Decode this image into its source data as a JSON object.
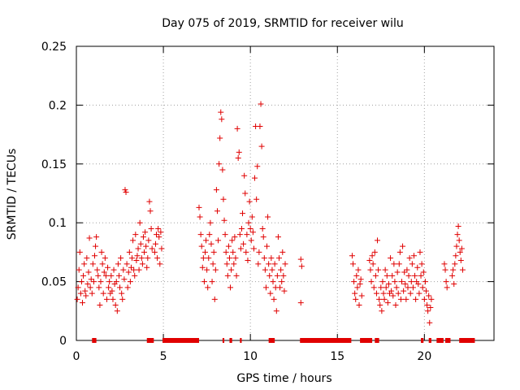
{
  "chart_data": {
    "type": "scatter",
    "title": "Day 075 of 2019, SRMTID for receiver wilu",
    "xlabel": "GPS time / hours",
    "ylabel": "SRMTID / TECUs",
    "xlim": [
      0,
      24
    ],
    "ylim": [
      0,
      0.25
    ],
    "x_ticks": [
      0,
      5,
      10,
      15,
      20
    ],
    "x_tick_labels": [
      "0",
      "5",
      "10",
      "15",
      "20"
    ],
    "y_ticks": [
      0,
      0.05,
      0.1,
      0.15,
      0.2,
      0.25
    ],
    "y_tick_labels": [
      "0",
      "0.05",
      "0.1",
      "0.15",
      "0.2",
      "0.25"
    ],
    "grid": true,
    "marker": "+",
    "color": "#e00000",
    "series": [
      {
        "name": "SRMTID",
        "points": [
          [
            0.05,
            0.035
          ],
          [
            0.1,
            0.045
          ],
          [
            0.15,
            0.06
          ],
          [
            0.2,
            0.075
          ],
          [
            0.25,
            0.04
          ],
          [
            0.3,
            0.05
          ],
          [
            0.35,
            0.032
          ],
          [
            0.4,
            0.055
          ],
          [
            0.45,
            0.065
          ],
          [
            0.5,
            0.042
          ],
          [
            0.55,
            0.038
          ],
          [
            0.6,
            0.07
          ],
          [
            0.65,
            0.048
          ],
          [
            0.7,
            0.058
          ],
          [
            0.75,
            0.087
          ],
          [
            0.8,
            0.045
          ],
          [
            0.85,
            0.052
          ],
          [
            0.9,
            0.04
          ],
          [
            0.95,
            0.065
          ],
          [
            1.0,
            0.05
          ],
          [
            1.05,
            0.072
          ],
          [
            1.1,
            0.08
          ],
          [
            1.15,
            0.088
          ],
          [
            1.2,
            0.06
          ],
          [
            1.25,
            0.055
          ],
          [
            1.3,
            0.045
          ],
          [
            1.35,
            0.03
          ],
          [
            1.4,
            0.05
          ],
          [
            1.45,
            0.075
          ],
          [
            1.5,
            0.065
          ],
          [
            1.55,
            0.04
          ],
          [
            1.6,
            0.058
          ],
          [
            1.65,
            0.07
          ],
          [
            1.7,
            0.055
          ],
          [
            1.75,
            0.035
          ],
          [
            1.8,
            0.062
          ],
          [
            1.85,
            0.045
          ],
          [
            1.9,
            0.05
          ],
          [
            1.95,
            0.04
          ],
          [
            2.0,
            0.055
          ],
          [
            2.05,
            0.042
          ],
          [
            2.1,
            0.035
          ],
          [
            2.15,
            0.06
          ],
          [
            2.2,
            0.048
          ],
          [
            2.25,
            0.03
          ],
          [
            2.3,
            0.05
          ],
          [
            2.35,
            0.025
          ],
          [
            2.4,
            0.065
          ],
          [
            2.45,
            0.055
          ],
          [
            2.5,
            0.045
          ],
          [
            2.55,
            0.07
          ],
          [
            2.6,
            0.04
          ],
          [
            2.65,
            0.035
          ],
          [
            2.7,
            0.06
          ],
          [
            2.75,
            0.052
          ],
          [
            2.8,
            0.128
          ],
          [
            2.85,
            0.126
          ],
          [
            2.9,
            0.065
          ],
          [
            2.95,
            0.045
          ],
          [
            3.0,
            0.058
          ],
          [
            3.05,
            0.075
          ],
          [
            3.1,
            0.05
          ],
          [
            3.15,
            0.062
          ],
          [
            3.2,
            0.07
          ],
          [
            3.25,
            0.085
          ],
          [
            3.3,
            0.06
          ],
          [
            3.35,
            0.055
          ],
          [
            3.4,
            0.09
          ],
          [
            3.45,
            0.068
          ],
          [
            3.5,
            0.072
          ],
          [
            3.55,
            0.078
          ],
          [
            3.6,
            0.06
          ],
          [
            3.65,
            0.1
          ],
          [
            3.7,
            0.082
          ],
          [
            3.75,
            0.07
          ],
          [
            3.8,
            0.065
          ],
          [
            3.85,
            0.088
          ],
          [
            3.9,
            0.075
          ],
          [
            3.95,
            0.092
          ],
          [
            4.0,
            0.08
          ],
          [
            4.05,
            0.062
          ],
          [
            4.1,
            0.07
          ],
          [
            4.15,
            0.085
          ],
          [
            4.2,
            0.118
          ],
          [
            4.25,
            0.11
          ],
          [
            4.3,
            0.095
          ],
          [
            4.35,
            0.078
          ],
          [
            4.5,
            0.075
          ],
          [
            4.55,
            0.082
          ],
          [
            4.6,
            0.09
          ],
          [
            4.65,
            0.07
          ],
          [
            4.7,
            0.095
          ],
          [
            4.75,
            0.088
          ],
          [
            4.8,
            0.065
          ],
          [
            4.85,
            0.092
          ],
          [
            4.9,
            0.078
          ],
          [
            7.05,
            0.113
          ],
          [
            7.1,
            0.105
          ],
          [
            7.15,
            0.09
          ],
          [
            7.2,
            0.08
          ],
          [
            7.25,
            0.062
          ],
          [
            7.3,
            0.07
          ],
          [
            7.35,
            0.05
          ],
          [
            7.4,
            0.075
          ],
          [
            7.45,
            0.085
          ],
          [
            7.5,
            0.06
          ],
          [
            7.55,
            0.045
          ],
          [
            7.6,
            0.07
          ],
          [
            7.65,
            0.09
          ],
          [
            7.7,
            0.1
          ],
          [
            7.75,
            0.082
          ],
          [
            7.8,
            0.05
          ],
          [
            7.85,
            0.065
          ],
          [
            7.9,
            0.075
          ],
          [
            7.95,
            0.035
          ],
          [
            8.0,
            0.06
          ],
          [
            8.05,
            0.128
          ],
          [
            8.1,
            0.11
          ],
          [
            8.15,
            0.085
          ],
          [
            8.2,
            0.15
          ],
          [
            8.25,
            0.172
          ],
          [
            8.3,
            0.194
          ],
          [
            8.35,
            0.188
          ],
          [
            8.4,
            0.145
          ],
          [
            8.45,
            0.12
          ],
          [
            8.5,
            0.102
          ],
          [
            8.55,
            0.09
          ],
          [
            8.6,
            0.075
          ],
          [
            8.65,
            0.065
          ],
          [
            8.7,
            0.055
          ],
          [
            8.75,
            0.08
          ],
          [
            8.8,
            0.07
          ],
          [
            8.85,
            0.045
          ],
          [
            8.9,
            0.06
          ],
          [
            8.95,
            0.085
          ],
          [
            9.0,
            0.075
          ],
          [
            9.05,
            0.065
          ],
          [
            9.1,
            0.088
          ],
          [
            9.15,
            0.07
          ],
          [
            9.2,
            0.055
          ],
          [
            9.25,
            0.18
          ],
          [
            9.3,
            0.155
          ],
          [
            9.35,
            0.16
          ],
          [
            9.4,
            0.09
          ],
          [
            9.45,
            0.078
          ],
          [
            9.5,
            0.095
          ],
          [
            9.55,
            0.108
          ],
          [
            9.6,
            0.082
          ],
          [
            9.65,
            0.14
          ],
          [
            9.7,
            0.125
          ],
          [
            9.75,
            0.075
          ],
          [
            9.8,
            0.09
          ],
          [
            9.85,
            0.068
          ],
          [
            9.9,
            0.1
          ],
          [
            9.95,
            0.118
          ],
          [
            10.0,
            0.095
          ],
          [
            10.05,
            0.085
          ],
          [
            10.1,
            0.105
          ],
          [
            10.15,
            0.092
          ],
          [
            10.2,
            0.078
          ],
          [
            10.25,
            0.138
          ],
          [
            10.3,
            0.182
          ],
          [
            10.35,
            0.12
          ],
          [
            10.4,
            0.148
          ],
          [
            10.45,
            0.065
          ],
          [
            10.5,
            0.075
          ],
          [
            10.55,
            0.182
          ],
          [
            10.6,
            0.201
          ],
          [
            10.65,
            0.165
          ],
          [
            10.7,
            0.095
          ],
          [
            10.75,
            0.088
          ],
          [
            10.8,
            0.07
          ],
          [
            10.85,
            0.06
          ],
          [
            10.9,
            0.045
          ],
          [
            10.95,
            0.08
          ],
          [
            11.0,
            0.105
          ],
          [
            11.05,
            0.065
          ],
          [
            11.1,
            0.055
          ],
          [
            11.15,
            0.04
          ],
          [
            11.2,
            0.07
          ],
          [
            11.25,
            0.06
          ],
          [
            11.3,
            0.05
          ],
          [
            11.35,
            0.035
          ],
          [
            11.4,
            0.065
          ],
          [
            11.45,
            0.045
          ],
          [
            11.5,
            0.025
          ],
          [
            11.55,
            0.055
          ],
          [
            11.6,
            0.088
          ],
          [
            11.65,
            0.07
          ],
          [
            11.7,
            0.045
          ],
          [
            11.75,
            0.06
          ],
          [
            11.8,
            0.05
          ],
          [
            11.85,
            0.075
          ],
          [
            11.9,
            0.055
          ],
          [
            11.95,
            0.042
          ],
          [
            12.0,
            0.065
          ],
          [
            12.9,
            0.069
          ],
          [
            12.95,
            0.063
          ],
          [
            12.9,
            0.032
          ],
          [
            15.85,
            0.072
          ],
          [
            15.9,
            0.065
          ],
          [
            15.95,
            0.05
          ],
          [
            16.0,
            0.04
          ],
          [
            16.05,
            0.035
          ],
          [
            16.1,
            0.055
          ],
          [
            16.15,
            0.045
          ],
          [
            16.2,
            0.06
          ],
          [
            16.25,
            0.03
          ],
          [
            16.3,
            0.048
          ],
          [
            16.35,
            0.052
          ],
          [
            16.4,
            0.038
          ],
          [
            16.85,
            0.068
          ],
          [
            16.9,
            0.06
          ],
          [
            16.95,
            0.05
          ],
          [
            17.0,
            0.072
          ],
          [
            17.05,
            0.065
          ],
          [
            17.1,
            0.045
          ],
          [
            17.15,
            0.075
          ],
          [
            17.2,
            0.055
          ],
          [
            17.25,
            0.04
          ],
          [
            17.3,
            0.085
          ],
          [
            17.35,
            0.06
          ],
          [
            17.4,
            0.035
          ],
          [
            17.45,
            0.03
          ],
          [
            17.5,
            0.045
          ],
          [
            17.55,
            0.025
          ],
          [
            17.6,
            0.05
          ],
          [
            17.65,
            0.04
          ],
          [
            17.7,
            0.035
          ],
          [
            17.75,
            0.06
          ],
          [
            17.8,
            0.045
          ],
          [
            17.85,
            0.055
          ],
          [
            17.9,
            0.032
          ],
          [
            17.95,
            0.048
          ],
          [
            18.0,
            0.04
          ],
          [
            18.05,
            0.07
          ],
          [
            18.1,
            0.042
          ],
          [
            18.15,
            0.055
          ],
          [
            18.2,
            0.038
          ],
          [
            18.25,
            0.065
          ],
          [
            18.3,
            0.05
          ],
          [
            18.35,
            0.03
          ],
          [
            18.4,
            0.045
          ],
          [
            18.45,
            0.058
          ],
          [
            18.5,
            0.04
          ],
          [
            18.55,
            0.065
          ],
          [
            18.6,
            0.075
          ],
          [
            18.65,
            0.035
          ],
          [
            18.7,
            0.05
          ],
          [
            18.75,
            0.08
          ],
          [
            18.8,
            0.042
          ],
          [
            18.85,
            0.058
          ],
          [
            18.9,
            0.048
          ],
          [
            18.95,
            0.035
          ],
          [
            19.0,
            0.06
          ],
          [
            19.05,
            0.045
          ],
          [
            19.1,
            0.055
          ],
          [
            19.15,
            0.07
          ],
          [
            19.2,
            0.04
          ],
          [
            19.25,
            0.05
          ],
          [
            19.3,
            0.065
          ],
          [
            19.35,
            0.045
          ],
          [
            19.4,
            0.072
          ],
          [
            19.45,
            0.055
          ],
          [
            19.5,
            0.035
          ],
          [
            19.55,
            0.05
          ],
          [
            19.6,
            0.062
          ],
          [
            19.65,
            0.048
          ],
          [
            19.7,
            0.04
          ],
          [
            19.75,
            0.075
          ],
          [
            19.8,
            0.055
          ],
          [
            19.85,
            0.065
          ],
          [
            19.9,
            0.045
          ],
          [
            19.95,
            0.058
          ],
          [
            20.0,
            0.035
          ],
          [
            20.05,
            0.05
          ],
          [
            20.1,
            0.042
          ],
          [
            20.15,
            0.03
          ],
          [
            20.2,
            0.025
          ],
          [
            20.25,
            0.038
          ],
          [
            20.3,
            0.015
          ],
          [
            20.35,
            0.028
          ],
          [
            20.4,
            0.035
          ],
          [
            21.15,
            0.065
          ],
          [
            21.2,
            0.06
          ],
          [
            21.25,
            0.05
          ],
          [
            21.3,
            0.045
          ],
          [
            21.6,
            0.055
          ],
          [
            21.65,
            0.06
          ],
          [
            21.7,
            0.048
          ],
          [
            21.75,
            0.065
          ],
          [
            21.8,
            0.072
          ],
          [
            21.85,
            0.08
          ],
          [
            21.9,
            0.09
          ],
          [
            21.95,
            0.097
          ],
          [
            22.0,
            0.085
          ],
          [
            22.05,
            0.075
          ],
          [
            22.1,
            0.068
          ],
          [
            22.15,
            0.078
          ],
          [
            22.2,
            0.06
          ]
        ]
      }
    ],
    "zero_level_intervals_hours": [
      [
        0.9,
        1.15
      ],
      [
        4.05,
        4.45
      ],
      [
        4.95,
        7.05
      ],
      [
        8.4,
        8.5
      ],
      [
        8.8,
        8.95
      ],
      [
        9.4,
        9.5
      ],
      [
        11.05,
        11.4
      ],
      [
        12.85,
        15.8
      ],
      [
        16.3,
        17.0
      ],
      [
        17.15,
        17.4
      ],
      [
        19.8,
        19.95
      ],
      [
        20.25,
        20.4
      ],
      [
        20.7,
        21.1
      ],
      [
        21.2,
        21.5
      ],
      [
        22.0,
        22.9
      ]
    ]
  }
}
